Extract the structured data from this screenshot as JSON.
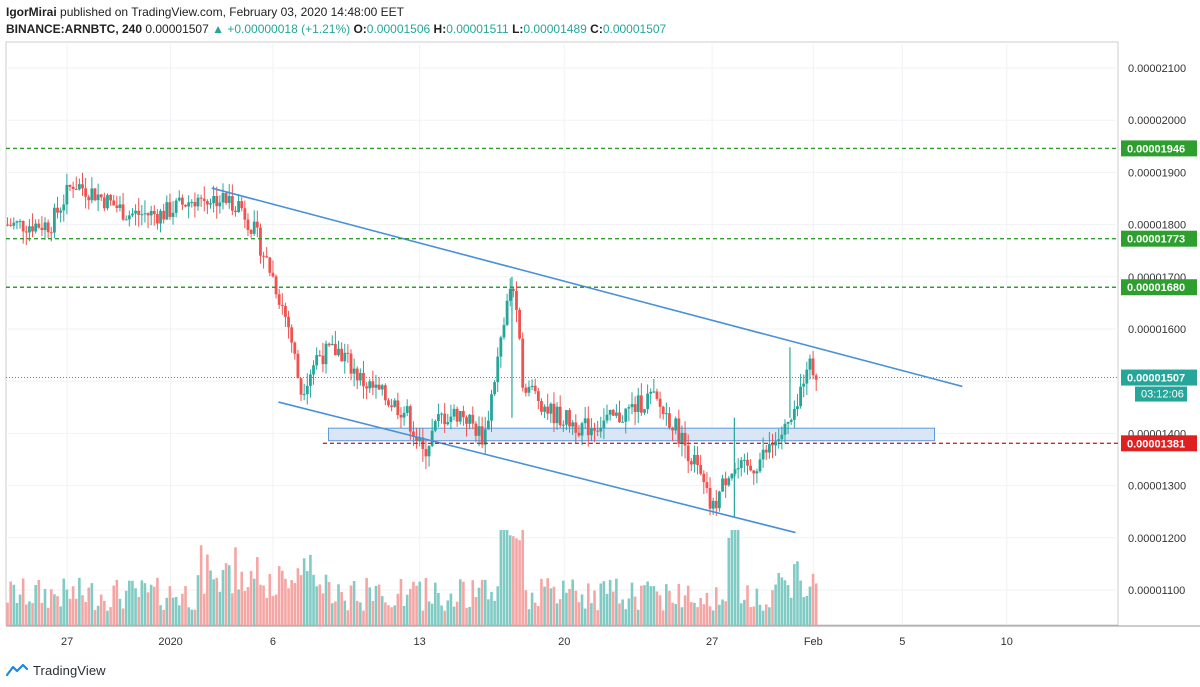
{
  "header": {
    "publisher": "IgorMirai",
    "published_text": "published on TradingView.com, February 03, 2020 14:48:00 EET",
    "symbol": "BINANCE:ARNBTC, 240",
    "last": "0.00001507",
    "change_arrow": "▲",
    "change": "+0.00000018 (+1.21%)",
    "o_label": "O:",
    "o_value": "0.00001506",
    "h_label": "H:",
    "h_value": "0.00001511",
    "l_label": "L:",
    "l_value": "0.00001489",
    "c_label": "C:",
    "c_value": "0.00001507"
  },
  "footer": {
    "brand": "TradingView",
    "icon": "tradingview-logo-icon"
  },
  "colors": {
    "up": "#26a69a",
    "down": "#ef5350",
    "vol_up": "#80cbc4",
    "vol_down": "#f5a6a4",
    "trendline": "#4a90d9",
    "support_green": "#2e9e2e",
    "resistance_red": "#e02020",
    "current_price": "#26a69a",
    "zone_fill": "#d6e4f5",
    "zone_border": "#4a90d9"
  },
  "chart_data": {
    "type": "candlestick",
    "interval": "240",
    "y_tick_labels": [
      "0.00002100",
      "0.00002000",
      "0.00001900",
      "0.00001800",
      "0.00001700",
      "0.00001600",
      "0.00001500",
      "0.00001400",
      "0.00001300",
      "0.00001200",
      "0.00001100"
    ],
    "x_tick_labels": [
      "27",
      "2020",
      "6",
      "13",
      "20",
      "27",
      "Feb",
      "5",
      "10"
    ],
    "price_range": [
      1.04e-05,
      2.22e-05
    ],
    "levels": [
      {
        "label": "0.00001946",
        "value": 1.946e-05,
        "color": "#2e9e2e",
        "style": "dashed"
      },
      {
        "label": "0.00001773",
        "value": 1.773e-05,
        "color": "#2e9e2e",
        "style": "dashed"
      },
      {
        "label": "0.00001680",
        "value": 1.68e-05,
        "color": "#2e9e2e",
        "style": "dashed"
      },
      {
        "label": "0.00001381",
        "value": 1.381e-05,
        "color": "#e02020",
        "style": "dashed"
      }
    ],
    "current_price": {
      "label": "0.00001507",
      "value": 1.507e-05,
      "countdown": "03:12:06"
    },
    "support_zone": [
      1.386e-05,
      1.41e-05
    ],
    "trendlines": [
      {
        "from": [
          0.185,
          1.87e-05
        ],
        "to": [
          0.86,
          1.49e-05
        ]
      },
      {
        "from": [
          0.245,
          1.46e-05
        ],
        "to": [
          0.71,
          1.21e-05
        ]
      }
    ],
    "price_path": [
      [
        0.0,
        1.8e-05
      ],
      [
        0.04,
        1.8e-05
      ],
      [
        0.06,
        1.88e-05
      ],
      [
        0.08,
        1.86e-05
      ],
      [
        0.11,
        1.82e-05
      ],
      [
        0.14,
        1.82e-05
      ],
      [
        0.17,
        1.85e-05
      ],
      [
        0.19,
        1.85e-05
      ],
      [
        0.21,
        1.84e-05
      ],
      [
        0.225,
        1.78e-05
      ],
      [
        0.24,
        1.7e-05
      ],
      [
        0.255,
        1.6e-05
      ],
      [
        0.265,
        1.48e-05
      ],
      [
        0.28,
        1.55e-05
      ],
      [
        0.3,
        1.56e-05
      ],
      [
        0.32,
        1.5e-05
      ],
      [
        0.34,
        1.47e-05
      ],
      [
        0.36,
        1.44e-05
      ],
      [
        0.375,
        1.36e-05
      ],
      [
        0.39,
        1.43e-05
      ],
      [
        0.41,
        1.44e-05
      ],
      [
        0.43,
        1.39e-05
      ],
      [
        0.455,
        1.7e-05
      ],
      [
        0.465,
        1.5e-05
      ],
      [
        0.49,
        1.44e-05
      ],
      [
        0.52,
        1.41e-05
      ],
      [
        0.55,
        1.43e-05
      ],
      [
        0.58,
        1.47e-05
      ],
      [
        0.6,
        1.42e-05
      ],
      [
        0.62,
        1.34e-05
      ],
      [
        0.635,
        1.25e-05
      ],
      [
        0.65,
        1.33e-05
      ],
      [
        0.67,
        1.33e-05
      ],
      [
        0.69,
        1.38e-05
      ],
      [
        0.71,
        1.43e-05
      ],
      [
        0.72,
        1.54e-05
      ],
      [
        0.73,
        1.507e-05
      ]
    ],
    "spikes": [
      {
        "t": 0.455,
        "high": 1.7e-05,
        "low": 1.43e-05
      },
      {
        "t": 0.655,
        "high": 1.43e-05,
        "low": 1.24e-05
      },
      {
        "t": 0.705,
        "high": 1.565e-05,
        "low": 1.43e-05
      }
    ],
    "volume_range": [
      0,
      8e-07
    ]
  }
}
